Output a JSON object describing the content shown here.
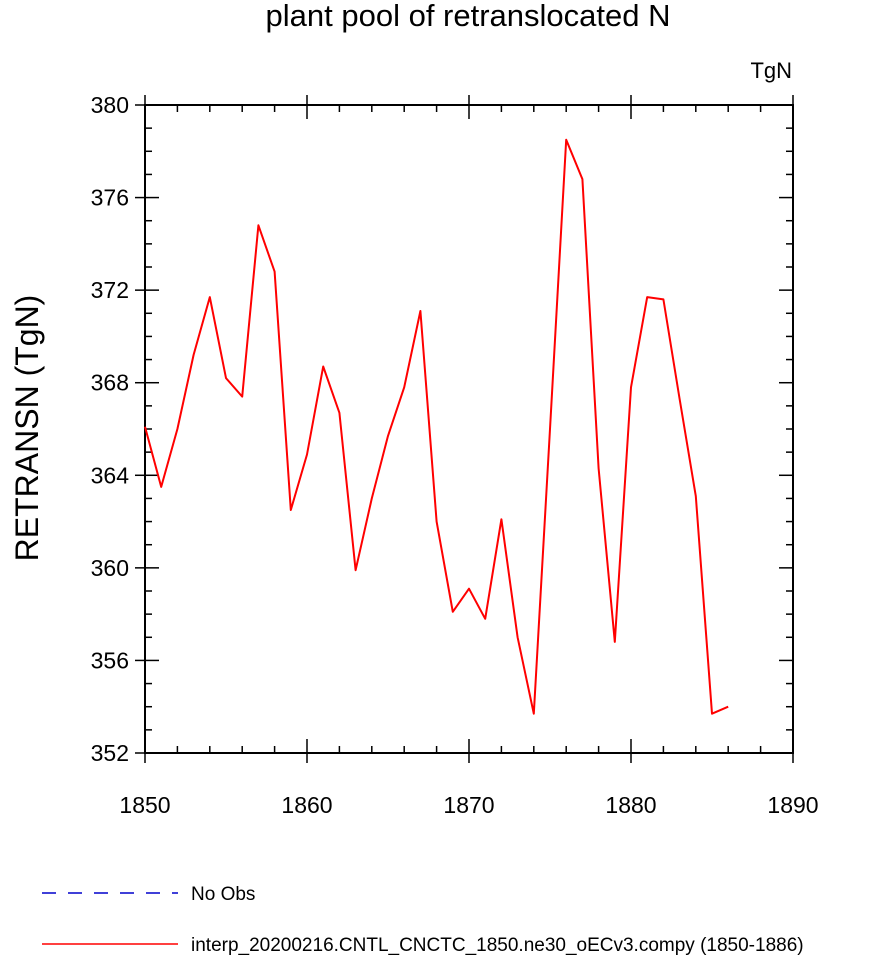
{
  "chart_data": {
    "type": "line",
    "title": "plant pool of retranslocated N",
    "units_label": "TgN",
    "xlabel": "",
    "ylabel": "RETRANSN  (TgN)",
    "xlim": [
      1850,
      1890
    ],
    "ylim": [
      352,
      380
    ],
    "xticks": [
      "1850",
      "1860",
      "1870",
      "1880",
      "1890"
    ],
    "yticks": [
      "352",
      "356",
      "360",
      "364",
      "368",
      "372",
      "376",
      "380"
    ],
    "x": [
      1850,
      1851,
      1852,
      1853,
      1854,
      1855,
      1856,
      1857,
      1858,
      1859,
      1860,
      1861,
      1862,
      1863,
      1864,
      1865,
      1866,
      1867,
      1868,
      1869,
      1870,
      1871,
      1872,
      1873,
      1874,
      1875,
      1876,
      1877,
      1878,
      1879,
      1880,
      1881,
      1882,
      1883,
      1884,
      1885,
      1886
    ],
    "series": [
      {
        "name": "interp_20200216.CNTL_CNCTC_1850.ne30_oECv3.compy (1850-1886)",
        "color": "#ff0000",
        "values": [
          366.1,
          363.5,
          366.0,
          369.2,
          371.7,
          368.2,
          367.4,
          374.8,
          372.8,
          362.5,
          364.9,
          368.7,
          366.7,
          359.9,
          363.0,
          365.7,
          367.8,
          371.1,
          362.0,
          358.1,
          359.1,
          357.8,
          362.1,
          357.0,
          353.7,
          366.0,
          378.5,
          376.8,
          364.3,
          356.8,
          367.8,
          371.7,
          371.6,
          367.3,
          363.1,
          353.7,
          354.0
        ]
      }
    ],
    "legend": {
      "placement": "bottom",
      "entries": [
        {
          "label": "No Obs",
          "color": "#0000cc",
          "style": "dashed"
        },
        {
          "label": "interp_20200216.CNTL_CNCTC_1850.ne30_oECv3.compy (1850-1886)",
          "color": "#ff0000",
          "style": "solid"
        }
      ]
    },
    "grid": false
  }
}
